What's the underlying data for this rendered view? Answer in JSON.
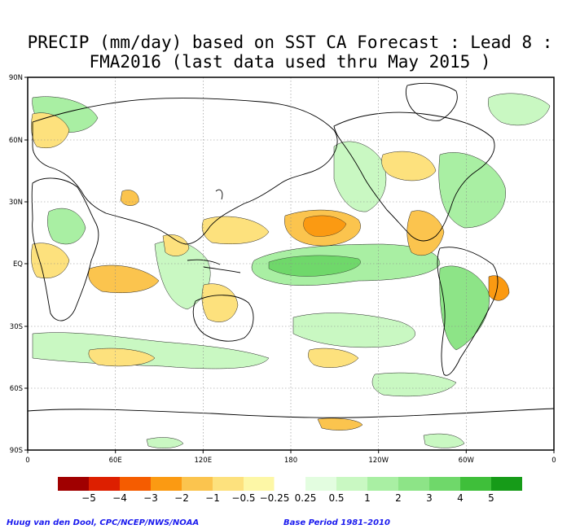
{
  "title": {
    "line1": "PRECIP (mm/day) based on SST CA Forecast : Lead 8 :",
    "line2": "FMA2016 (last data used thru May 2015 )"
  },
  "axes": {
    "lat_labels": [
      "90N",
      "60N",
      "30N",
      "EQ",
      "30S",
      "60S",
      "90S"
    ],
    "lon_labels": [
      "0",
      "60E",
      "120E",
      "180",
      "120W",
      "60W",
      "0"
    ]
  },
  "colorbar": {
    "colors": [
      "#a00000",
      "#dd1f00",
      "#f55c00",
      "#fb9a12",
      "#fbc44e",
      "#fde17d",
      "#fdf7a6",
      "#ffffff",
      "#e3fde0",
      "#c9f8c2",
      "#a9efa3",
      "#8de487",
      "#6fd86a",
      "#3fbf3a",
      "#169b18"
    ],
    "labels": [
      "−5",
      "−4",
      "−3",
      "−2",
      "−1",
      "−0.5",
      "−0.25",
      "0.25",
      "0.5",
      "1",
      "2",
      "3",
      "4",
      "5"
    ]
  },
  "credits": {
    "left": "Huug van den Dool, CPC/NCEP/NWS/NOAA",
    "right": "Base Period 1981–2010"
  }
}
